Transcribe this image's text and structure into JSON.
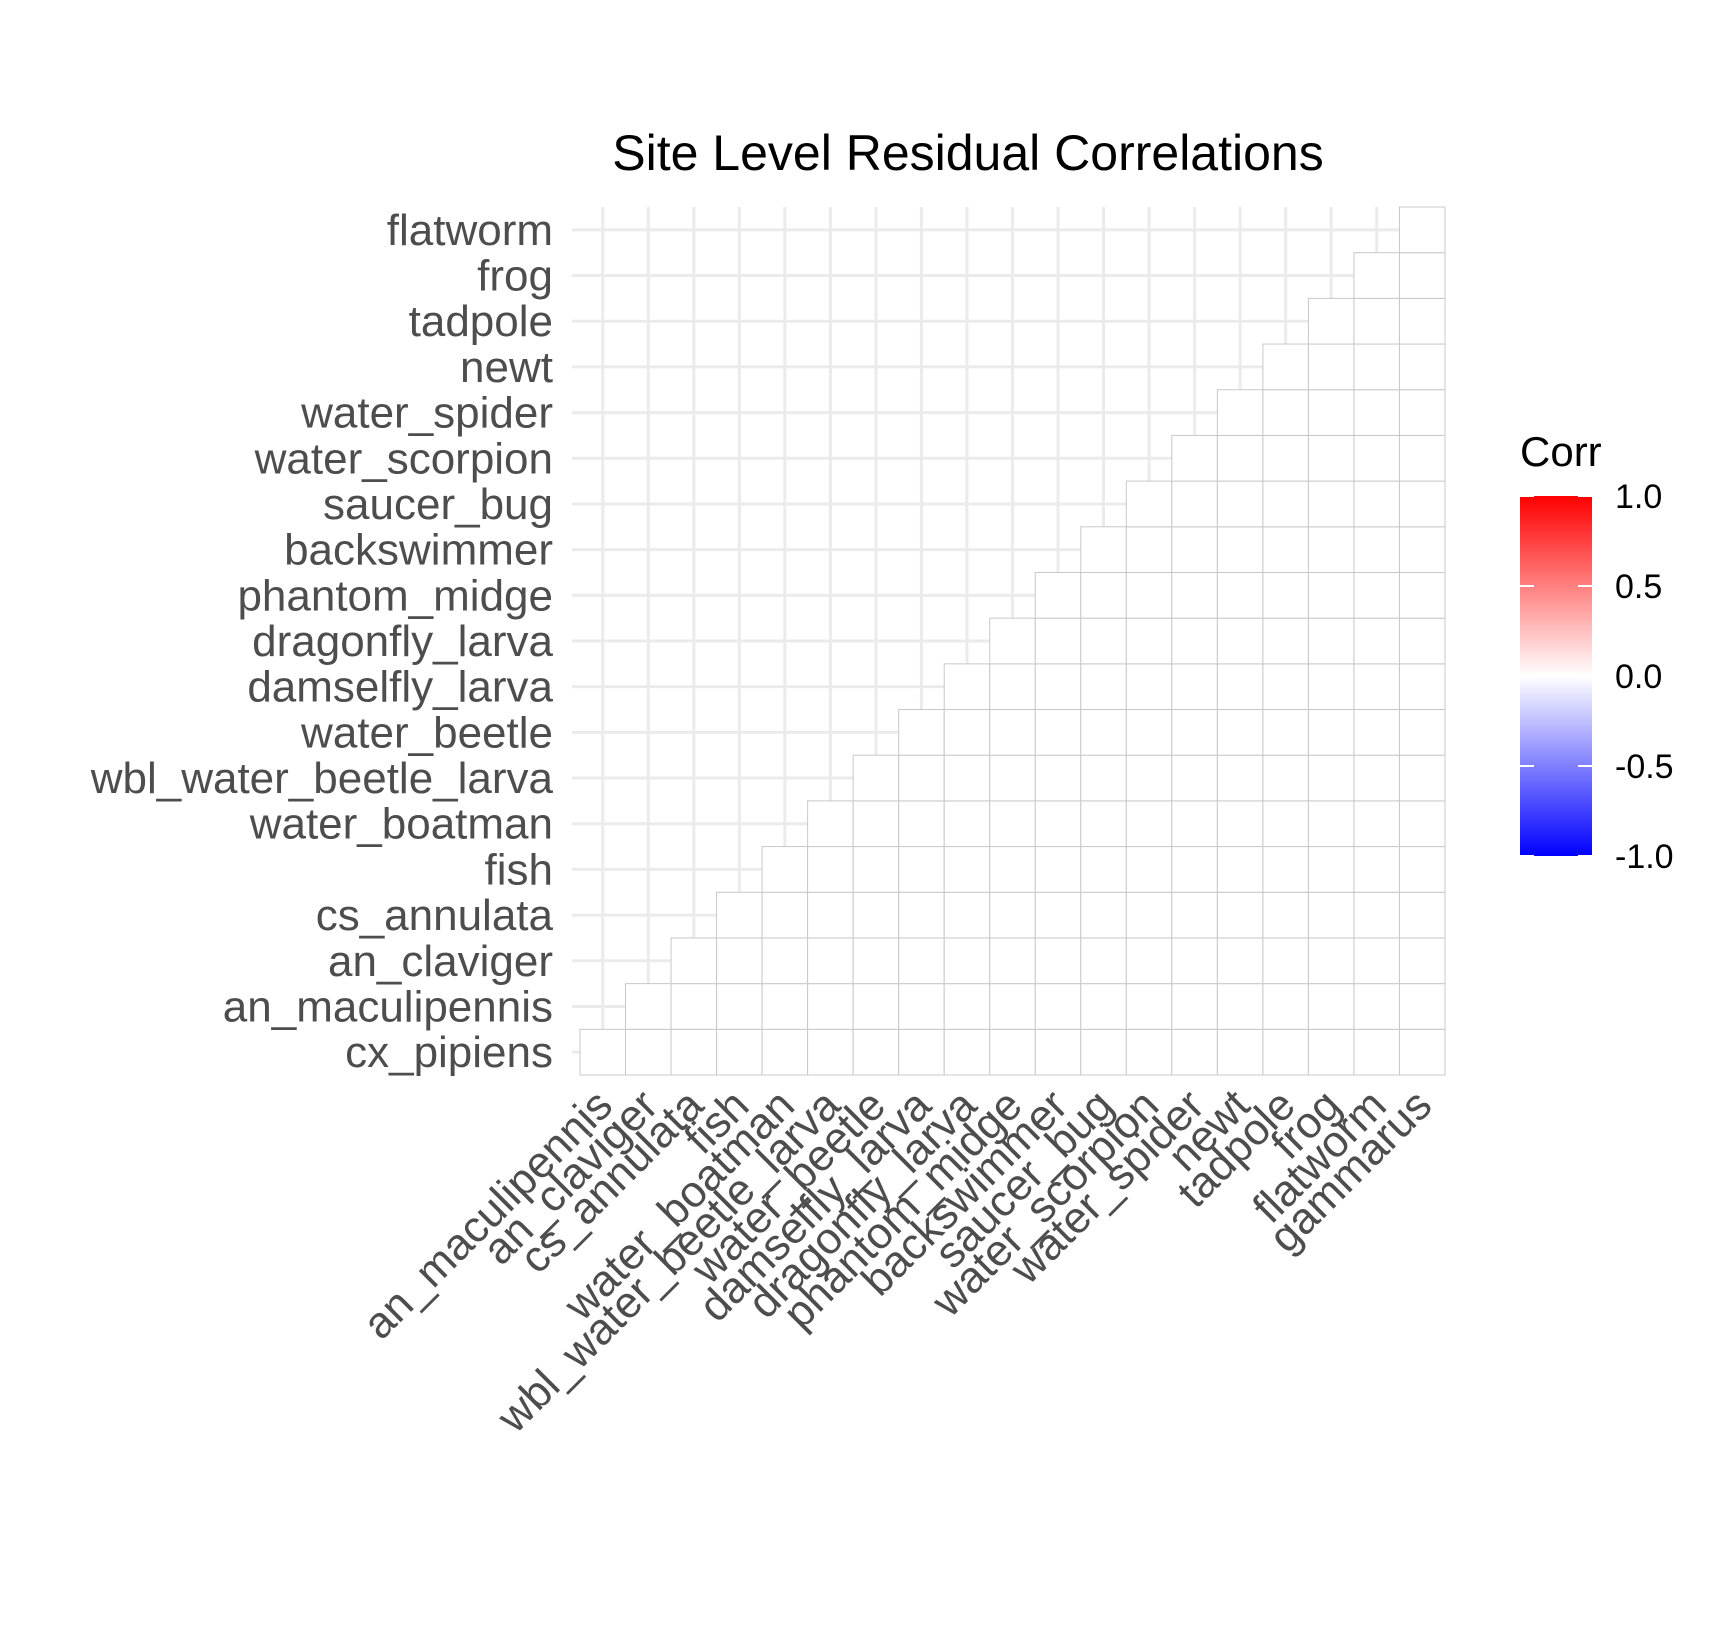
{
  "chart_data": {
    "type": "heatmap",
    "title": "Site Level Residual Correlations",
    "x_categories": [
      "an_maculipennis",
      "an_claviger",
      "cs_annulata",
      "fish",
      "water_boatman",
      "wbl_water_beetle_larva",
      "water_beetle",
      "damselfly_larva",
      "dragonfly_larva",
      "phantom_midge",
      "backswimmer",
      "saucer_bug",
      "water_scorpion",
      "water_spider",
      "newt",
      "tadpole",
      "frog",
      "flatworm",
      "gammarus"
    ],
    "y_categories": [
      "cx_pipiens",
      "an_maculipennis",
      "an_claviger",
      "cs_annulata",
      "fish",
      "water_boatman",
      "wbl_water_beetle_larva",
      "water_beetle",
      "damselfly_larva",
      "dragonfly_larva",
      "phantom_midge",
      "backswimmer",
      "saucer_bug",
      "water_scorpion",
      "water_spider",
      "newt",
      "tadpole",
      "frog",
      "flatworm"
    ],
    "triangle": "upper",
    "cell_value": 0.0,
    "grid": true,
    "legend": {
      "title": "Corr",
      "position": "right",
      "range": [
        -1.0,
        1.0
      ],
      "ticks": [
        "1.0",
        "0.5",
        "0.0",
        "-0.5",
        "-1.0"
      ],
      "tick_values": [
        1.0,
        0.5,
        0.0,
        -0.5,
        -1.0
      ],
      "colors": {
        "low": "#0000ff",
        "mid": "#ffffff",
        "high": "#ff0000"
      }
    },
    "colors": {
      "cell_border": "#c8c8c8",
      "grid": "#ebebeb",
      "tick_text": "#4d4d4d"
    }
  }
}
